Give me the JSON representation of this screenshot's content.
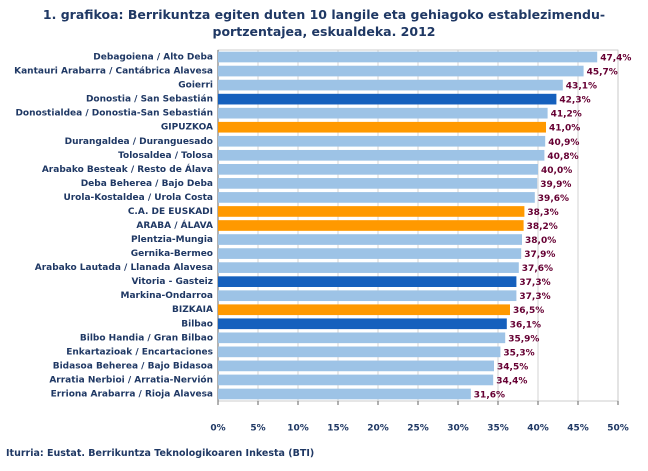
{
  "chart_data": {
    "type": "bar",
    "orientation": "horizontal",
    "title": "1. grafikoa: Berrikuntza egiten duten 10 langile eta gehiagoko establezimendu-portzentajea, eskualdeka. 2012",
    "source": "Iturria: Eustat. Berrikuntza Teknologikoaren Inkesta (BTI)",
    "categories": [
      "Debagoiena / Alto Deba",
      "Kantauri Arabarra / Cantábrica Alavesa",
      "Goierri",
      "Donostia / San Sebastián",
      "Donostialdea / Donostia-San Sebastián",
      "GIPUZKOA",
      "Durangaldea / Duranguesado",
      "Tolosaldea / Tolosa",
      "Arabako Besteak / Resto de Álava",
      "Deba Beherea / Bajo Deba",
      "Urola-Kostaldea / Urola Costa",
      "C.A. DE EUSKADI",
      "ARABA / ÁLAVA",
      "Plentzia-Mungia",
      "Gernika-Bermeo",
      "Arabako Lautada / Llanada Alavesa",
      "Vitoria - Gasteiz",
      "Markina-Ondarroa",
      "BIZKAIA",
      "Bilbao",
      "Bilbo Handia / Gran Bilbao",
      "Enkartazioak / Encartaciones",
      "Bidasoa Beherea / Bajo Bidasoa",
      "Arratia Nerbioi / Arratia-Nervión",
      "Erriona Arabarra / Rioja Alavesa"
    ],
    "values": [
      47.4,
      45.7,
      43.1,
      42.3,
      41.2,
      41.0,
      40.9,
      40.8,
      40.0,
      39.9,
      39.6,
      38.3,
      38.2,
      38.0,
      37.9,
      37.6,
      37.3,
      37.3,
      36.5,
      36.1,
      35.9,
      35.3,
      34.5,
      34.4,
      31.6
    ],
    "value_labels": [
      "47,4%",
      "45,7%",
      "43,1%",
      "42,3%",
      "41,2%",
      "41,0%",
      "40,9%",
      "40,8%",
      "40,0%",
      "39,9%",
      "39,6%",
      "38,3%",
      "38,2%",
      "38,0%",
      "37,9%",
      "37,6%",
      "37,3%",
      "37,3%",
      "36,5%",
      "36,1%",
      "35,9%",
      "35,3%",
      "34,5%",
      "34,4%",
      "31,6%"
    ],
    "colors": [
      "#9dc3e6",
      "#9dc3e6",
      "#9dc3e6",
      "#1560bd",
      "#9dc3e6",
      "#ff9900",
      "#9dc3e6",
      "#9dc3e6",
      "#9dc3e6",
      "#9dc3e6",
      "#9dc3e6",
      "#ff9900",
      "#ff9900",
      "#9dc3e6",
      "#9dc3e6",
      "#9dc3e6",
      "#1560bd",
      "#9dc3e6",
      "#ff9900",
      "#1560bd",
      "#9dc3e6",
      "#9dc3e6",
      "#9dc3e6",
      "#9dc3e6",
      "#9dc3e6"
    ],
    "xlim": [
      0,
      50
    ],
    "xticks": [
      {
        "value": 0,
        "label": "0%"
      },
      {
        "value": 5,
        "label": "5%"
      },
      {
        "value": 10,
        "label": "10%"
      },
      {
        "value": 15,
        "label": "15%"
      },
      {
        "value": 20,
        "label": "20%"
      },
      {
        "value": 25,
        "label": "25%"
      },
      {
        "value": 30,
        "label": "30%"
      },
      {
        "value": 35,
        "label": "35%"
      },
      {
        "value": 40,
        "label": "40%"
      },
      {
        "value": 45,
        "label": "45%"
      },
      {
        "value": 50,
        "label": "50%"
      }
    ],
    "grid": true
  }
}
